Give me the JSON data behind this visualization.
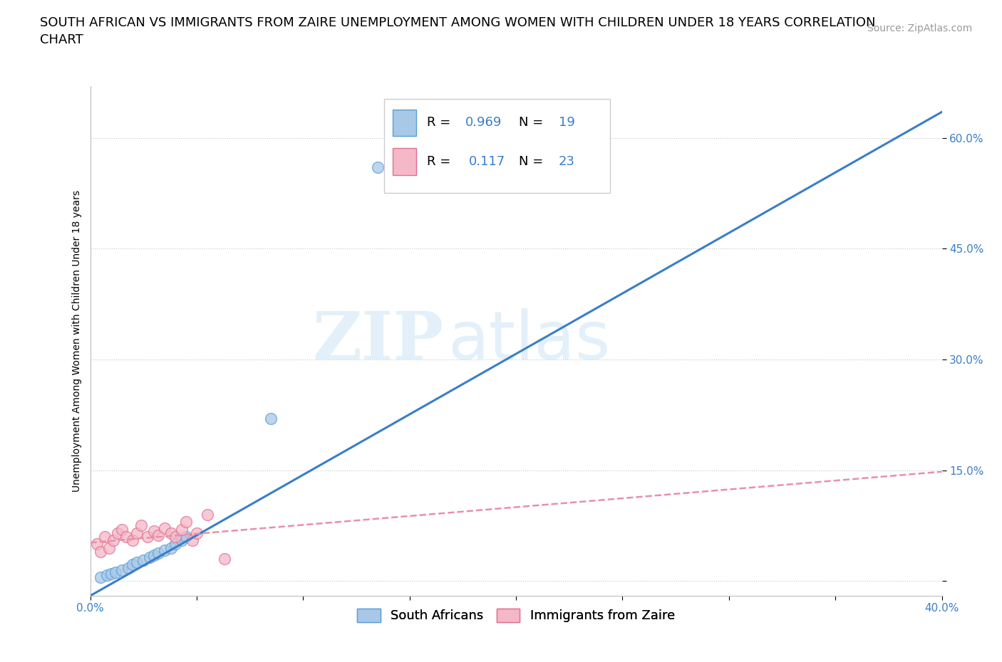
{
  "title": "SOUTH AFRICAN VS IMMIGRANTS FROM ZAIRE UNEMPLOYMENT AMONG WOMEN WITH CHILDREN UNDER 18 YEARS CORRELATION\nCHART",
  "source": "Source: ZipAtlas.com",
  "ylabel": "Unemployment Among Women with Children Under 18 years",
  "xlim": [
    0.0,
    0.4
  ],
  "ylim": [
    -0.02,
    0.67
  ],
  "xticks": [
    0.0,
    0.05,
    0.1,
    0.15,
    0.2,
    0.25,
    0.3,
    0.35,
    0.4
  ],
  "yticks": [
    0.0,
    0.15,
    0.3,
    0.45,
    0.6
  ],
  "yticklabels": [
    "",
    "15.0%",
    "30.0%",
    "45.0%",
    "60.0%"
  ],
  "watermark_zip": "ZIP",
  "watermark_atlas": "atlas",
  "sa_color": "#a8c8e8",
  "sa_edge_color": "#5a9fd4",
  "zaire_color": "#f5b8c8",
  "zaire_edge_color": "#e07090",
  "sa_R": 0.969,
  "sa_N": 19,
  "zaire_R": 0.117,
  "zaire_N": 23,
  "blue_line_color": "#3a7ec8",
  "pink_line_color": "#e890a8",
  "sa_x": [
    0.005,
    0.008,
    0.01,
    0.012,
    0.015,
    0.018,
    0.02,
    0.022,
    0.025,
    0.028,
    0.03,
    0.032,
    0.035,
    0.038,
    0.04,
    0.043,
    0.045,
    0.085,
    0.135
  ],
  "sa_y": [
    0.005,
    0.008,
    0.01,
    0.012,
    0.015,
    0.018,
    0.022,
    0.025,
    0.028,
    0.032,
    0.035,
    0.038,
    0.042,
    0.045,
    0.05,
    0.055,
    0.06,
    0.22,
    0.56
  ],
  "zaire_x": [
    0.003,
    0.005,
    0.007,
    0.009,
    0.011,
    0.013,
    0.015,
    0.017,
    0.02,
    0.022,
    0.024,
    0.027,
    0.03,
    0.032,
    0.035,
    0.038,
    0.04,
    0.043,
    0.045,
    0.048,
    0.05,
    0.055,
    0.063
  ],
  "zaire_y": [
    0.05,
    0.04,
    0.06,
    0.045,
    0.055,
    0.065,
    0.07,
    0.06,
    0.055,
    0.065,
    0.075,
    0.06,
    0.068,
    0.062,
    0.072,
    0.065,
    0.06,
    0.07,
    0.08,
    0.055,
    0.065,
    0.09,
    0.03
  ],
  "sa_line_x0": 0.0,
  "sa_line_x1": 0.4,
  "sa_line_y0": -0.02,
  "sa_line_y1": 0.635,
  "zaire_line_x0": 0.0,
  "zaire_line_x1": 0.4,
  "zaire_line_y0": 0.052,
  "zaire_line_y1": 0.148,
  "sa_marker_size": 130,
  "zaire_marker_size": 130,
  "grid_color": "#c8c8c8",
  "background_color": "#ffffff",
  "title_fontsize": 13,
  "axis_label_fontsize": 10,
  "tick_fontsize": 11,
  "legend_fontsize": 13,
  "source_fontsize": 10
}
